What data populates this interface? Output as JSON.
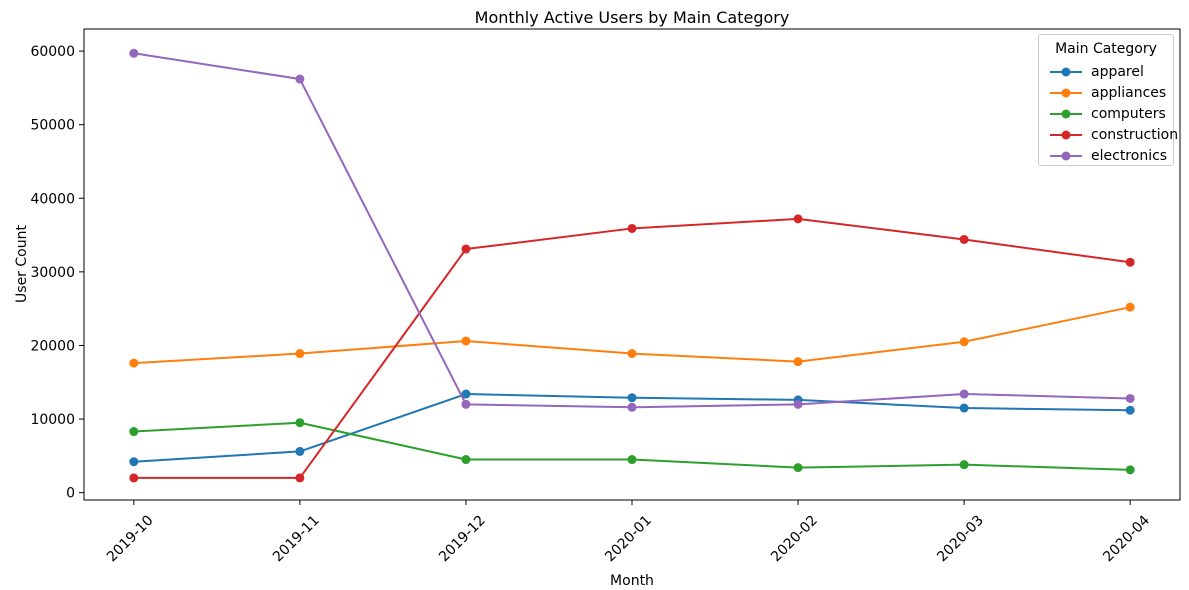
{
  "figure": {
    "background": "#ffffff",
    "text_color": "#000000",
    "spine_color": "#000000",
    "legend_border_color": "#cccccc"
  },
  "chart_data": {
    "type": "line",
    "title": "Monthly Active Users by Main Category",
    "xlabel": "Month",
    "ylabel": "User Count",
    "x": [
      "2019-10",
      "2019-11",
      "2019-12",
      "2020-01",
      "2020-02",
      "2020-03",
      "2020-04"
    ],
    "series": [
      {
        "name": "apparel",
        "color": "#1f77b4",
        "values": [
          4200,
          5600,
          13400,
          12900,
          12600,
          11500,
          11200
        ]
      },
      {
        "name": "appliances",
        "color": "#ff7f0e",
        "values": [
          17600,
          18900,
          20600,
          18900,
          17800,
          20500,
          25200
        ]
      },
      {
        "name": "computers",
        "color": "#2ca02c",
        "values": [
          8300,
          9500,
          4500,
          4500,
          3400,
          3800,
          3100
        ]
      },
      {
        "name": "construction",
        "color": "#d62728",
        "values": [
          2000,
          2000,
          33100,
          35900,
          37200,
          34400,
          31300
        ]
      },
      {
        "name": "electronics",
        "color": "#9467bd",
        "values": [
          59700,
          56200,
          12000,
          11600,
          12000,
          13400,
          12800
        ]
      }
    ],
    "yticks": [
      0,
      10000,
      20000,
      30000,
      40000,
      50000,
      60000
    ],
    "ylim": [
      -1000,
      63000
    ],
    "x_tick_rotation": 45,
    "grid": false,
    "marker": "circle",
    "legend": {
      "title": "Main Category",
      "position": "upper right"
    }
  }
}
